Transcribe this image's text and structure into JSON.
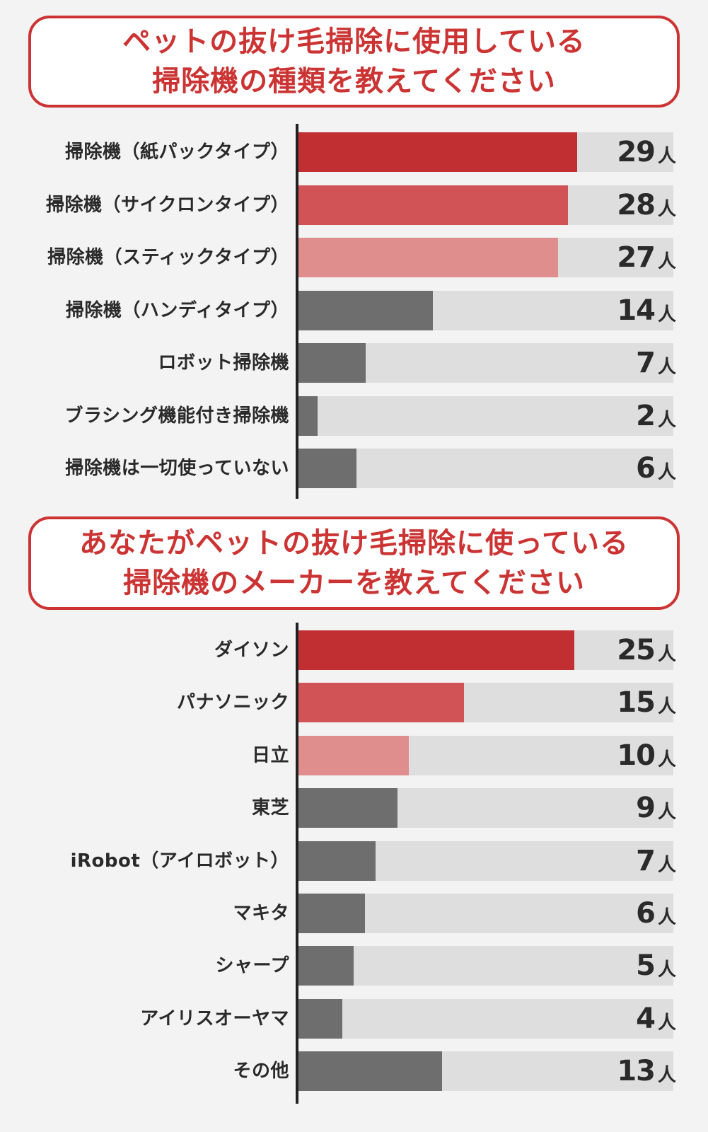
{
  "colors": {
    "first": "#c22f32",
    "second": "#d15355",
    "third": "#e08d8d",
    "other": "#6e6e6e",
    "track": "#dedede",
    "accent": "#cc3434"
  },
  "chart_data": [
    {
      "type": "bar",
      "orientation": "horizontal",
      "title_line1": "ペットの抜け毛掃除に使用している",
      "title_line2": "掃除機の種類を教えてください",
      "unit": "人",
      "xlim": [
        0,
        39
      ],
      "categories": [
        "掃除機（紙パックタイプ）",
        "掃除機（サイクロンタイプ）",
        "掃除機（スティックタイプ）",
        "掃除機（ハンディタイプ）",
        "ロボット掃除機",
        "ブラシング機能付き掃除機",
        "掃除機は一切使っていない"
      ],
      "values": [
        29,
        28,
        27,
        14,
        7,
        2,
        6
      ]
    },
    {
      "type": "bar",
      "orientation": "horizontal",
      "title_line1": "あなたがペットの抜け毛掃除に使っている",
      "title_line2": "掃除機のメーカーを教えてください",
      "unit": "人",
      "xlim": [
        0,
        34
      ],
      "categories": [
        "ダイソン",
        "パナソニック",
        "日立",
        "東芝",
        "iRobot（アイロボット）",
        "マキタ",
        "シャープ",
        "アイリスオーヤマ",
        "その他"
      ],
      "values": [
        25,
        15,
        10,
        9,
        7,
        6,
        5,
        4,
        13
      ]
    }
  ]
}
